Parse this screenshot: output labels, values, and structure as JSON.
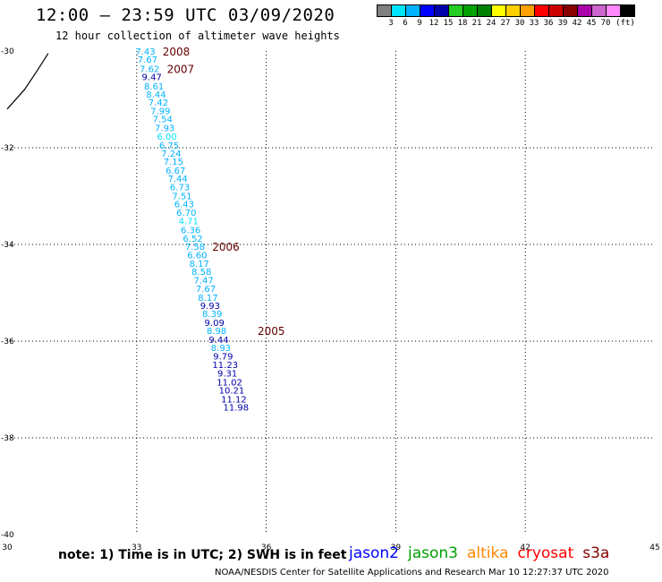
{
  "title": "12:00 – 23:59 UTC 03/09/2020",
  "subtitle": "12 hour collection of altimeter wave heights",
  "legend": {
    "colors": [
      "#808080",
      "#00e5ff",
      "#00b2ff",
      "#0000ff",
      "#0000aa",
      "#22cc22",
      "#00a000",
      "#008000",
      "#ffff00",
      "#ffd000",
      "#ffa000",
      "#ff0000",
      "#cc0000",
      "#880000",
      "#aa00aa",
      "#cc66cc",
      "#ff88ff",
      "#000000"
    ],
    "labels": [
      "3",
      "6",
      "9",
      "12",
      "15",
      "18",
      "21",
      "24",
      "27",
      "30",
      "33",
      "36",
      "39",
      "42",
      "45",
      "70",
      "(ft)"
    ]
  },
  "note": "note: 1) Time is in UTC; 2) SWH is in feet",
  "satellites": [
    {
      "name": "jason2",
      "color": "#0000ff"
    },
    {
      "name": "jason3",
      "color": "#00a000"
    },
    {
      "name": "altika",
      "color": "#ff8800"
    },
    {
      "name": "cryosat",
      "color": "#ff0000"
    },
    {
      "name": "s3a",
      "color": "#880000"
    }
  ],
  "credit": "NOAA/NESDIS Center for Satellite Applications and Research    Mar 10 12:27:37 UTC 2020",
  "chart_data": {
    "type": "map",
    "x_ticks": [
      "30",
      "33",
      "36",
      "39",
      "42",
      "45"
    ],
    "y_ticks": [
      "-30",
      "-32",
      "-34",
      "-36",
      "-38",
      "-40"
    ],
    "xlim": [
      30,
      45
    ],
    "ylim": [
      -40,
      -30
    ],
    "grid": true,
    "coastline": [
      [
        30,
        -31.2
      ],
      [
        30.4,
        -30.8
      ],
      [
        30.7,
        -30.4
      ],
      [
        30.95,
        -30.05
      ]
    ],
    "observations": [
      {
        "lon": 33.2,
        "lat": -30.0,
        "value": "7.43",
        "color": "#00b2ff"
      },
      {
        "lon": 33.25,
        "lat": -30.17,
        "value": "7.67",
        "color": "#00b2ff"
      },
      {
        "lon": 33.3,
        "lat": -30.36,
        "value": "7.62",
        "color": "#00b2ff"
      },
      {
        "lon": 33.35,
        "lat": -30.53,
        "value": "9.47",
        "color": "#0000aa"
      },
      {
        "lon": 33.4,
        "lat": -30.72,
        "value": "8.61",
        "color": "#00b2ff"
      },
      {
        "lon": 33.45,
        "lat": -30.89,
        "value": "8.44",
        "color": "#00b2ff"
      },
      {
        "lon": 33.5,
        "lat": -31.06,
        "value": "7.42",
        "color": "#00b2ff"
      },
      {
        "lon": 33.55,
        "lat": -31.23,
        "value": "7.99",
        "color": "#00b2ff"
      },
      {
        "lon": 33.6,
        "lat": -31.4,
        "value": "7.54",
        "color": "#00b2ff"
      },
      {
        "lon": 33.65,
        "lat": -31.58,
        "value": "7.93",
        "color": "#00b2ff"
      },
      {
        "lon": 33.7,
        "lat": -31.76,
        "value": "6.00",
        "color": "#00e5ff"
      },
      {
        "lon": 33.75,
        "lat": -31.94,
        "value": "6.75",
        "color": "#00b2ff"
      },
      {
        "lon": 33.8,
        "lat": -32.11,
        "value": "7.24",
        "color": "#00b2ff"
      },
      {
        "lon": 33.85,
        "lat": -32.28,
        "value": "7.15",
        "color": "#00b2ff"
      },
      {
        "lon": 33.9,
        "lat": -32.46,
        "value": "6.67",
        "color": "#00b2ff"
      },
      {
        "lon": 33.95,
        "lat": -32.63,
        "value": "7.44",
        "color": "#00b2ff"
      },
      {
        "lon": 34.0,
        "lat": -32.81,
        "value": "6.73",
        "color": "#00b2ff"
      },
      {
        "lon": 34.05,
        "lat": -32.99,
        "value": "7.51",
        "color": "#00b2ff"
      },
      {
        "lon": 34.1,
        "lat": -33.16,
        "value": "6.43",
        "color": "#00b2ff"
      },
      {
        "lon": 34.15,
        "lat": -33.33,
        "value": "6.70",
        "color": "#00b2ff"
      },
      {
        "lon": 34.2,
        "lat": -33.51,
        "value": "4.71",
        "color": "#00e5ff"
      },
      {
        "lon": 34.25,
        "lat": -33.69,
        "value": "6.36",
        "color": "#00b2ff"
      },
      {
        "lon": 34.3,
        "lat": -33.87,
        "value": "6.52",
        "color": "#00b2ff"
      },
      {
        "lon": 34.35,
        "lat": -34.04,
        "value": "7.58",
        "color": "#00b2ff"
      },
      {
        "lon": 34.4,
        "lat": -34.21,
        "value": "6.60",
        "color": "#00b2ff"
      },
      {
        "lon": 34.45,
        "lat": -34.39,
        "value": "8.17",
        "color": "#00b2ff"
      },
      {
        "lon": 34.5,
        "lat": -34.56,
        "value": "8.58",
        "color": "#00b2ff"
      },
      {
        "lon": 34.55,
        "lat": -34.73,
        "value": "7.47",
        "color": "#00b2ff"
      },
      {
        "lon": 34.6,
        "lat": -34.91,
        "value": "7.67",
        "color": "#00b2ff"
      },
      {
        "lon": 34.65,
        "lat": -35.09,
        "value": "8.17",
        "color": "#00b2ff"
      },
      {
        "lon": 34.7,
        "lat": -35.26,
        "value": "9.93",
        "color": "#0000aa"
      },
      {
        "lon": 34.75,
        "lat": -35.43,
        "value": "8.39",
        "color": "#00b2ff"
      },
      {
        "lon": 34.8,
        "lat": -35.61,
        "value": "9.09",
        "color": "#0000aa"
      },
      {
        "lon": 34.85,
        "lat": -35.78,
        "value": "8.98",
        "color": "#00b2ff"
      },
      {
        "lon": 34.9,
        "lat": -35.96,
        "value": "9.44",
        "color": "#0000aa"
      },
      {
        "lon": 34.95,
        "lat": -36.13,
        "value": "8.93",
        "color": "#00b2ff"
      },
      {
        "lon": 35.0,
        "lat": -36.31,
        "value": "9.79",
        "color": "#0000aa"
      },
      {
        "lon": 35.05,
        "lat": -36.48,
        "value": "11.23",
        "color": "#0000aa"
      },
      {
        "lon": 35.1,
        "lat": -36.66,
        "value": "9.31",
        "color": "#0000aa"
      },
      {
        "lon": 35.15,
        "lat": -36.84,
        "value": "11.02",
        "color": "#0000aa"
      },
      {
        "lon": 35.2,
        "lat": -37.01,
        "value": "10.21",
        "color": "#0000aa"
      },
      {
        "lon": 35.25,
        "lat": -37.19,
        "value": "11.12",
        "color": "#0000aa"
      },
      {
        "lon": 35.3,
        "lat": -37.36,
        "value": "11.98",
        "color": "#0000aa"
      }
    ],
    "time_labels": [
      {
        "lon": 33.6,
        "lat": -30.0,
        "text": "2008"
      },
      {
        "lon": 33.7,
        "lat": -30.36,
        "text": "2007"
      },
      {
        "lon": 34.75,
        "lat": -34.04,
        "text": "2006"
      },
      {
        "lon": 35.8,
        "lat": -35.78,
        "text": "2005"
      }
    ],
    "time_label_color": "#660000"
  }
}
